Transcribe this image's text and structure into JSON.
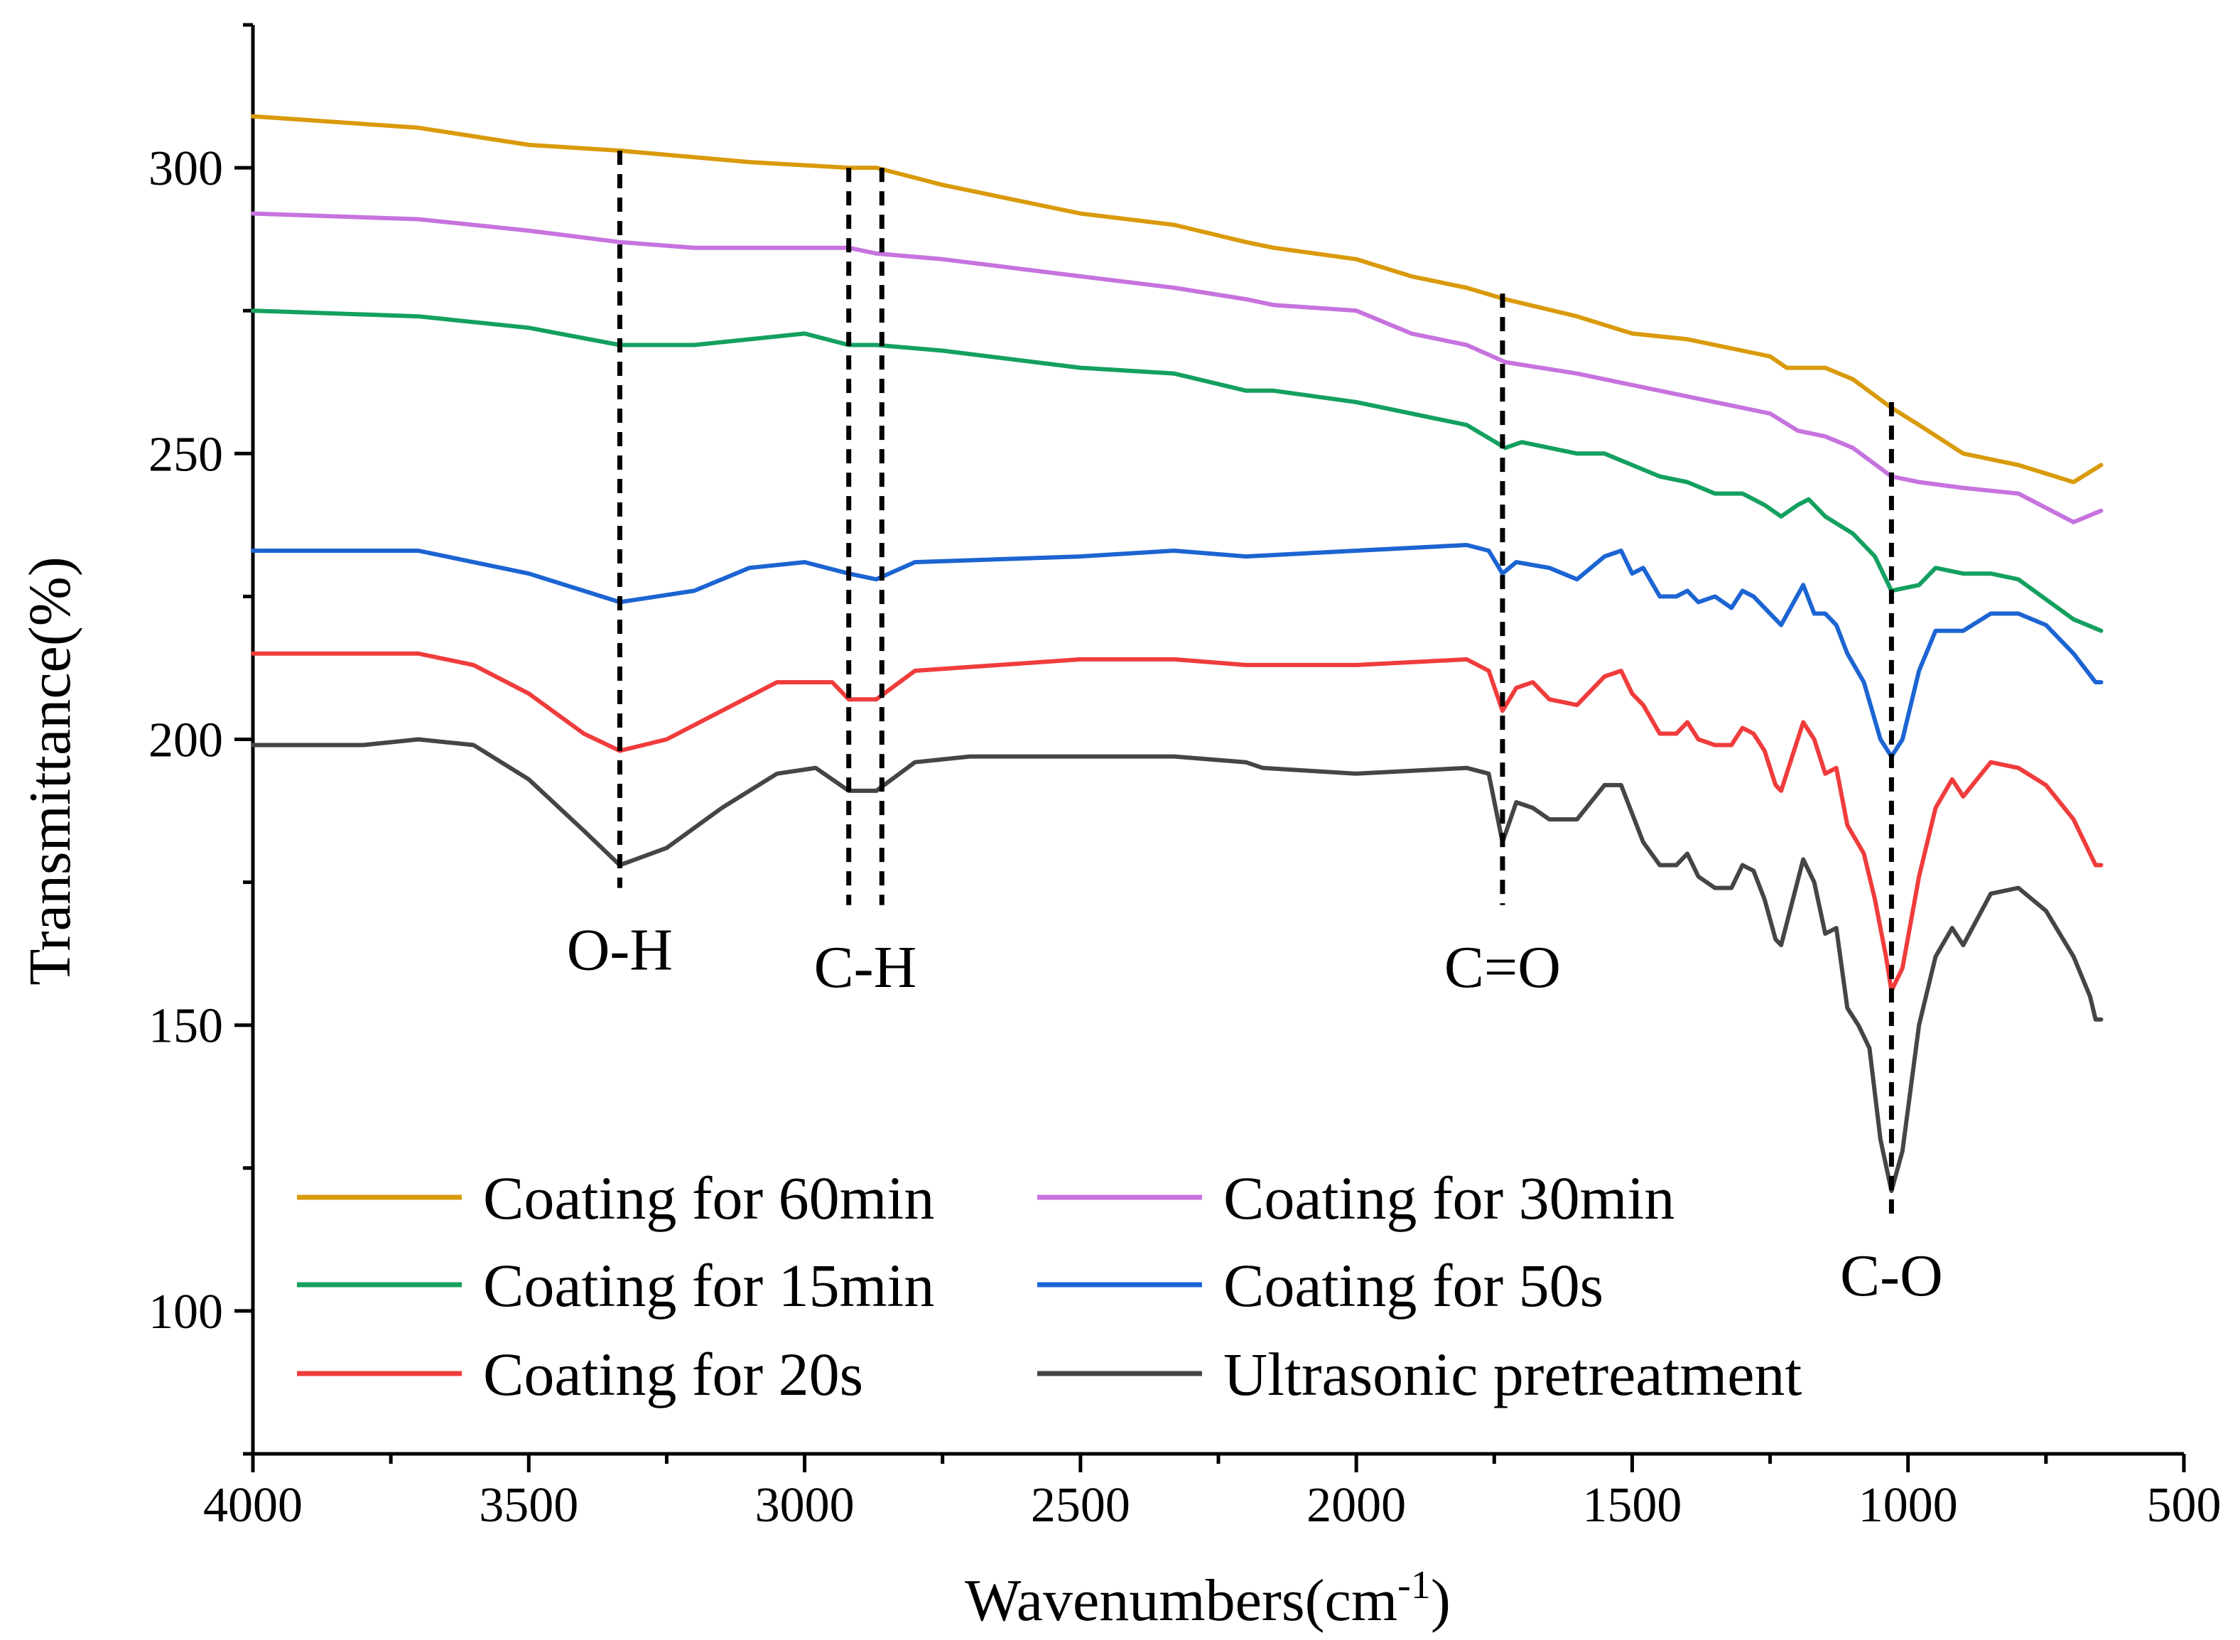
{
  "chart_data": {
    "type": "line",
    "title": "",
    "xlabel": "Wavenumbers(cm",
    "xlabel_superscript": "-1",
    "xlabel_suffix": ")",
    "ylabel": "Transmittance(%)",
    "xlim": [
      4000,
      500
    ],
    "ylim": [
      75,
      325
    ],
    "x_ticks": [
      4000,
      3500,
      3000,
      2500,
      2000,
      1500,
      1000,
      500
    ],
    "y_ticks": [
      100,
      150,
      200,
      250,
      300
    ],
    "x_minor_ticks": [
      3750,
      3250,
      2750,
      2250,
      1750,
      1250,
      750
    ],
    "y_minor_ticks": [
      75,
      125,
      175,
      225,
      275,
      325
    ],
    "legend": {
      "position": "bottom-left",
      "columns": 2
    },
    "series": [
      {
        "name": "Coating for 60min",
        "color": "#d99a0b",
        "points": [
          [
            4000,
            309
          ],
          [
            3700,
            307
          ],
          [
            3500,
            304
          ],
          [
            3335,
            303
          ],
          [
            3100,
            301
          ],
          [
            2920,
            300
          ],
          [
            2870,
            300
          ],
          [
            2750,
            297
          ],
          [
            2500,
            292
          ],
          [
            2330,
            290
          ],
          [
            2200,
            287
          ],
          [
            2150,
            286
          ],
          [
            2000,
            284
          ],
          [
            1900,
            281
          ],
          [
            1800,
            279
          ],
          [
            1730,
            277
          ],
          [
            1600,
            274
          ],
          [
            1500,
            271
          ],
          [
            1400,
            270
          ],
          [
            1300,
            268
          ],
          [
            1250,
            267
          ],
          [
            1220,
            265
          ],
          [
            1150,
            265
          ],
          [
            1100,
            263
          ],
          [
            1030,
            258
          ],
          [
            980,
            255
          ],
          [
            900,
            250
          ],
          [
            800,
            248
          ],
          [
            700,
            245
          ],
          [
            650,
            248
          ]
        ]
      },
      {
        "name": "Coating for 30min",
        "color": "#c673de",
        "points": [
          [
            4000,
            292
          ],
          [
            3700,
            291
          ],
          [
            3500,
            289
          ],
          [
            3335,
            287
          ],
          [
            3200,
            286
          ],
          [
            3000,
            286
          ],
          [
            2920,
            286
          ],
          [
            2870,
            285
          ],
          [
            2750,
            284
          ],
          [
            2500,
            281
          ],
          [
            2330,
            279
          ],
          [
            2200,
            277
          ],
          [
            2150,
            276
          ],
          [
            2000,
            275
          ],
          [
            1900,
            271
          ],
          [
            1800,
            269
          ],
          [
            1730,
            266
          ],
          [
            1600,
            264
          ],
          [
            1500,
            262
          ],
          [
            1400,
            260
          ],
          [
            1300,
            258
          ],
          [
            1250,
            257
          ],
          [
            1200,
            254
          ],
          [
            1150,
            253
          ],
          [
            1100,
            251
          ],
          [
            1030,
            246
          ],
          [
            980,
            245
          ],
          [
            900,
            244
          ],
          [
            800,
            243
          ],
          [
            700,
            238
          ],
          [
            650,
            240
          ]
        ]
      },
      {
        "name": "Coating for 15min",
        "color": "#14a05f",
        "points": [
          [
            4000,
            275
          ],
          [
            3700,
            274
          ],
          [
            3500,
            272
          ],
          [
            3335,
            269
          ],
          [
            3200,
            269
          ],
          [
            3000,
            271
          ],
          [
            2920,
            269
          ],
          [
            2870,
            269
          ],
          [
            2750,
            268
          ],
          [
            2500,
            265
          ],
          [
            2330,
            264
          ],
          [
            2200,
            261
          ],
          [
            2150,
            261
          ],
          [
            2000,
            259
          ],
          [
            1900,
            257
          ],
          [
            1800,
            255
          ],
          [
            1730,
            251
          ],
          [
            1700,
            252
          ],
          [
            1600,
            250
          ],
          [
            1550,
            250
          ],
          [
            1500,
            248
          ],
          [
            1450,
            246
          ],
          [
            1400,
            245
          ],
          [
            1350,
            243
          ],
          [
            1300,
            243
          ],
          [
            1260,
            241
          ],
          [
            1230,
            239
          ],
          [
            1200,
            241
          ],
          [
            1180,
            242
          ],
          [
            1150,
            239
          ],
          [
            1100,
            236
          ],
          [
            1060,
            232
          ],
          [
            1030,
            226
          ],
          [
            980,
            227
          ],
          [
            950,
            230
          ],
          [
            900,
            229
          ],
          [
            850,
            229
          ],
          [
            800,
            228
          ],
          [
            700,
            221
          ],
          [
            650,
            219
          ]
        ]
      },
      {
        "name": "Coating for 50s",
        "color": "#1c64d2",
        "points": [
          [
            4000,
            233
          ],
          [
            3700,
            233
          ],
          [
            3500,
            229
          ],
          [
            3335,
            224
          ],
          [
            3200,
            226
          ],
          [
            3100,
            230
          ],
          [
            3000,
            231
          ],
          [
            2920,
            229
          ],
          [
            2870,
            228
          ],
          [
            2800,
            231
          ],
          [
            2500,
            232
          ],
          [
            2330,
            233
          ],
          [
            2200,
            232
          ],
          [
            2000,
            233
          ],
          [
            1800,
            234
          ],
          [
            1760,
            233
          ],
          [
            1735,
            229
          ],
          [
            1710,
            231
          ],
          [
            1650,
            230
          ],
          [
            1600,
            228
          ],
          [
            1550,
            232
          ],
          [
            1520,
            233
          ],
          [
            1500,
            229
          ],
          [
            1480,
            230
          ],
          [
            1450,
            225
          ],
          [
            1420,
            225
          ],
          [
            1400,
            226
          ],
          [
            1380,
            224
          ],
          [
            1350,
            225
          ],
          [
            1320,
            223
          ],
          [
            1300,
            226
          ],
          [
            1280,
            225
          ],
          [
            1260,
            223
          ],
          [
            1230,
            220
          ],
          [
            1190,
            227
          ],
          [
            1170,
            222
          ],
          [
            1150,
            222
          ],
          [
            1130,
            220
          ],
          [
            1110,
            215
          ],
          [
            1080,
            210
          ],
          [
            1050,
            200
          ],
          [
            1030,
            197
          ],
          [
            1010,
            200
          ],
          [
            980,
            212
          ],
          [
            950,
            219
          ],
          [
            900,
            219
          ],
          [
            850,
            222
          ],
          [
            800,
            222
          ],
          [
            750,
            220
          ],
          [
            700,
            215
          ],
          [
            660,
            210
          ],
          [
            650,
            210
          ]
        ]
      },
      {
        "name": "Coating for 20s",
        "color": "#f03c3c",
        "points": [
          [
            4000,
            215
          ],
          [
            3700,
            215
          ],
          [
            3600,
            213
          ],
          [
            3500,
            208
          ],
          [
            3400,
            201
          ],
          [
            3335,
            198
          ],
          [
            3250,
            200
          ],
          [
            3150,
            205
          ],
          [
            3050,
            210
          ],
          [
            2950,
            210
          ],
          [
            2920,
            207
          ],
          [
            2870,
            207
          ],
          [
            2800,
            212
          ],
          [
            2500,
            214
          ],
          [
            2330,
            214
          ],
          [
            2200,
            213
          ],
          [
            2000,
            213
          ],
          [
            1800,
            214
          ],
          [
            1760,
            212
          ],
          [
            1735,
            205
          ],
          [
            1710,
            209
          ],
          [
            1680,
            210
          ],
          [
            1650,
            207
          ],
          [
            1600,
            206
          ],
          [
            1550,
            211
          ],
          [
            1520,
            212
          ],
          [
            1500,
            208
          ],
          [
            1480,
            206
          ],
          [
            1450,
            201
          ],
          [
            1420,
            201
          ],
          [
            1400,
            203
          ],
          [
            1380,
            200
          ],
          [
            1350,
            199
          ],
          [
            1320,
            199
          ],
          [
            1300,
            202
          ],
          [
            1280,
            201
          ],
          [
            1260,
            198
          ],
          [
            1240,
            192
          ],
          [
            1230,
            191
          ],
          [
            1190,
            203
          ],
          [
            1170,
            200
          ],
          [
            1150,
            194
          ],
          [
            1130,
            195
          ],
          [
            1110,
            185
          ],
          [
            1080,
            180
          ],
          [
            1060,
            172
          ],
          [
            1040,
            162
          ],
          [
            1030,
            156
          ],
          [
            1010,
            160
          ],
          [
            980,
            176
          ],
          [
            950,
            188
          ],
          [
            920,
            193
          ],
          [
            900,
            190
          ],
          [
            850,
            196
          ],
          [
            800,
            195
          ],
          [
            750,
            192
          ],
          [
            700,
            186
          ],
          [
            660,
            178
          ],
          [
            650,
            178
          ]
        ]
      },
      {
        "name": "Ultrasonic pretreatment",
        "color": "#454545",
        "points": [
          [
            4000,
            199
          ],
          [
            3800,
            199
          ],
          [
            3700,
            200
          ],
          [
            3600,
            199
          ],
          [
            3500,
            193
          ],
          [
            3400,
            184
          ],
          [
            3335,
            178
          ],
          [
            3250,
            181
          ],
          [
            3150,
            188
          ],
          [
            3050,
            194
          ],
          [
            2980,
            195
          ],
          [
            2920,
            191
          ],
          [
            2870,
            191
          ],
          [
            2800,
            196
          ],
          [
            2700,
            197
          ],
          [
            2500,
            197
          ],
          [
            2330,
            197
          ],
          [
            2200,
            196
          ],
          [
            2170,
            195
          ],
          [
            2000,
            194
          ],
          [
            1800,
            195
          ],
          [
            1760,
            194
          ],
          [
            1735,
            182
          ],
          [
            1710,
            189
          ],
          [
            1680,
            188
          ],
          [
            1650,
            186
          ],
          [
            1600,
            186
          ],
          [
            1550,
            192
          ],
          [
            1520,
            192
          ],
          [
            1500,
            187
          ],
          [
            1480,
            182
          ],
          [
            1450,
            178
          ],
          [
            1420,
            178
          ],
          [
            1400,
            180
          ],
          [
            1380,
            176
          ],
          [
            1350,
            174
          ],
          [
            1320,
            174
          ],
          [
            1300,
            178
          ],
          [
            1280,
            177
          ],
          [
            1260,
            172
          ],
          [
            1240,
            165
          ],
          [
            1230,
            164
          ],
          [
            1190,
            179
          ],
          [
            1170,
            175
          ],
          [
            1150,
            166
          ],
          [
            1130,
            167
          ],
          [
            1110,
            153
          ],
          [
            1090,
            150
          ],
          [
            1070,
            146
          ],
          [
            1050,
            130
          ],
          [
            1030,
            121
          ],
          [
            1010,
            128
          ],
          [
            980,
            150
          ],
          [
            950,
            162
          ],
          [
            920,
            167
          ],
          [
            900,
            164
          ],
          [
            850,
            173
          ],
          [
            800,
            174
          ],
          [
            750,
            170
          ],
          [
            700,
            162
          ],
          [
            670,
            155
          ],
          [
            660,
            151
          ],
          [
            650,
            151
          ]
        ]
      }
    ],
    "annotations": [
      {
        "label": "O-H",
        "x_lines": [
          3335
        ],
        "top_value": 303,
        "bottom_value": 174,
        "label_x": 3335
      },
      {
        "label": "C-H",
        "x_lines": [
          2920,
          2860
        ],
        "top_value": 300,
        "bottom_value": 171,
        "label_x": 2890
      },
      {
        "label": "C=O",
        "x_lines": [
          1735
        ],
        "top_value": 278,
        "bottom_value": 171,
        "label_x": 1735
      },
      {
        "label": "C-O",
        "x_lines": [
          1030
        ],
        "top_value": 259,
        "bottom_value": 117,
        "label_x": 1030
      }
    ]
  }
}
